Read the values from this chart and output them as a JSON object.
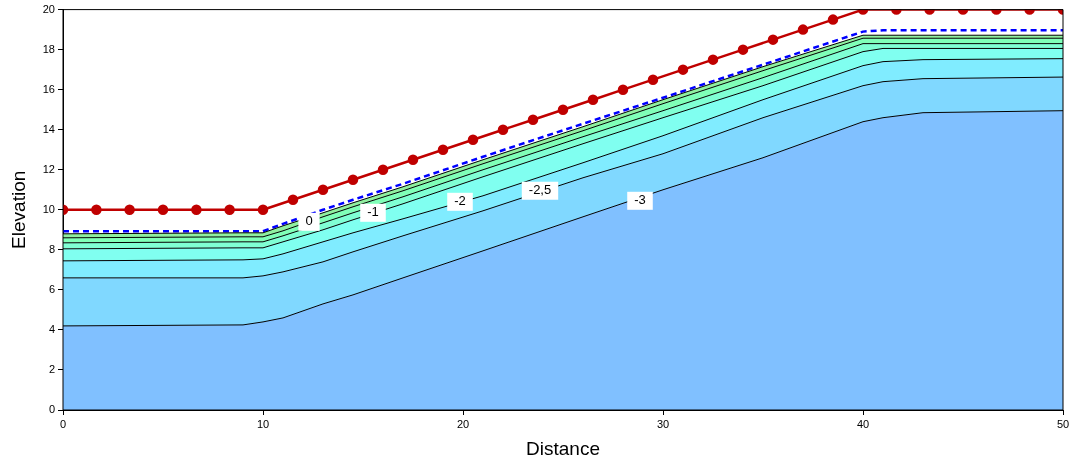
{
  "chart_data": {
    "type": "area",
    "xlabel": "Distance",
    "ylabel": "Elevation",
    "x": [
      0,
      9,
      10,
      11,
      13,
      14.5,
      17,
      21,
      26,
      30,
      35,
      40,
      41,
      43,
      50
    ],
    "xlim": [
      0,
      50
    ],
    "xticks": [
      0,
      10,
      20,
      30,
      40,
      50
    ],
    "ylim": [
      0,
      20
    ],
    "yticks": [
      0,
      2,
      4,
      6,
      8,
      10,
      12,
      14,
      16,
      18,
      20
    ],
    "grid": false,
    "legend": false,
    "series": [
      {
        "color": "#80c0ff",
        "values": [
          4.2,
          4.25,
          4.4,
          4.6,
          5.3,
          5.75,
          6.6,
          7.95,
          9.65,
          11.0,
          12.6,
          14.4,
          14.6,
          14.85,
          14.95
        ]
      },
      {
        "color": "#80d8ff",
        "values": [
          6.6,
          6.6,
          6.7,
          6.9,
          7.4,
          7.9,
          8.7,
          9.95,
          11.6,
          12.8,
          14.6,
          16.2,
          16.4,
          16.55,
          16.63
        ]
      },
      {
        "color": "#80ecff",
        "values": [
          7.45,
          7.5,
          7.55,
          7.8,
          8.4,
          8.85,
          9.55,
          10.7,
          12.35,
          13.7,
          15.5,
          17.2,
          17.4,
          17.5,
          17.55
        ]
      },
      {
        "color": "#80fff0",
        "values": [
          8.05,
          8.1,
          8.1,
          8.4,
          9.0,
          9.5,
          10.3,
          11.65,
          13.3,
          14.6,
          16.2,
          17.9,
          18.06,
          18.06,
          18.06
        ]
      },
      {
        "color": "#80ffd4",
        "values": [
          8.35,
          8.4,
          8.4,
          8.7,
          9.35,
          9.85,
          10.65,
          12.0,
          13.65,
          14.95,
          16.6,
          18.3,
          18.3,
          18.3,
          18.3
        ]
      },
      {
        "color": "#80ffb8",
        "values": [
          8.6,
          8.65,
          8.65,
          8.95,
          9.65,
          10.15,
          10.95,
          12.3,
          13.95,
          15.3,
          16.95,
          18.57,
          18.57,
          18.57,
          18.57
        ]
      },
      {
        "color": "#90f0a0",
        "values": [
          8.8,
          8.85,
          8.85,
          9.2,
          9.85,
          10.35,
          11.15,
          12.5,
          14.15,
          15.5,
          17.15,
          18.72,
          18.72,
          18.72,
          18.72
        ]
      },
      {
        "type": "line",
        "color": "#0000ff",
        "line_style": "dashed",
        "marker": "none",
        "values": [
          8.93,
          8.93,
          8.93,
          9.3,
          10.0,
          10.5,
          11.3,
          12.65,
          14.3,
          15.6,
          17.25,
          18.9,
          18.97,
          18.97,
          18.97
        ]
      },
      {
        "type": "line",
        "color": "#c00000",
        "line_style": "solid",
        "marker": "circle",
        "x": [
          0,
          1.67,
          3.33,
          5,
          6.67,
          8.33,
          10,
          11.5,
          13,
          14.5,
          16,
          17.5,
          19,
          20.5,
          22,
          23.5,
          25,
          26.5,
          28,
          29.5,
          31,
          32.5,
          34,
          35.5,
          37,
          38.5,
          40,
          41.67,
          43.33,
          45,
          46.67,
          48.33,
          50
        ],
        "values": [
          10,
          10,
          10,
          10,
          10,
          10,
          10,
          10.5,
          11,
          11.5,
          12,
          12.5,
          13,
          13.5,
          14,
          14.5,
          15,
          15.5,
          16,
          16.5,
          17,
          17.5,
          18,
          18.5,
          19,
          19.5,
          20,
          20,
          20,
          20,
          20,
          20,
          20
        ]
      }
    ],
    "annotations": [
      {
        "text": "0",
        "x": 12.3,
        "y": 9.4
      },
      {
        "text": "-1",
        "x": 15.5,
        "y": 9.85
      },
      {
        "text": "-2",
        "x": 19.85,
        "y": 10.4
      },
      {
        "text": "-2,5",
        "x": 23.85,
        "y": 10.95
      },
      {
        "text": "-3",
        "x": 28.85,
        "y": 10.45
      }
    ]
  }
}
